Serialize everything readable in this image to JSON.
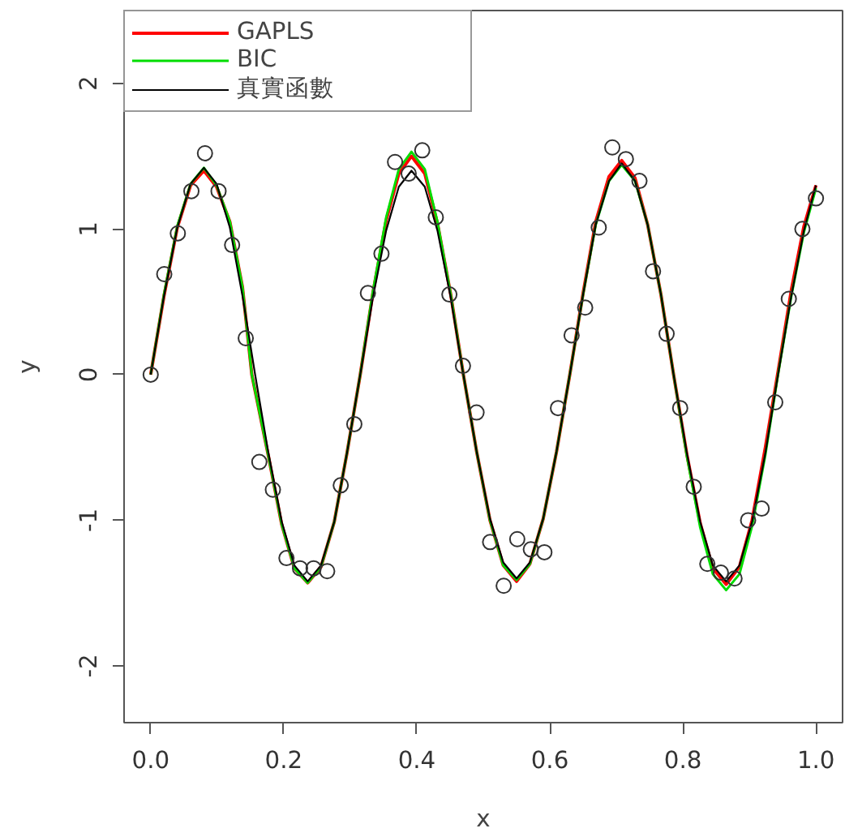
{
  "chart_data": {
    "type": "line",
    "xlabel": "x",
    "ylabel": "y",
    "xlim": [
      -0.04,
      1.04
    ],
    "ylim": [
      -2.39,
      2.5
    ],
    "xticks": [
      {
        "value": 0,
        "label": "0.0"
      },
      {
        "value": 0.2,
        "label": "0.2"
      },
      {
        "value": 0.4,
        "label": "0.4"
      },
      {
        "value": 0.6,
        "label": "0.6"
      },
      {
        "value": 0.8,
        "label": "0.8"
      },
      {
        "value": 1,
        "label": "1.0"
      }
    ],
    "yticks": [
      -2,
      -1,
      0,
      1,
      2
    ],
    "grid": false,
    "legend": "top left",
    "line_style": "solid",
    "series": [
      {
        "name": "GAPLS",
        "color": "#ff0000",
        "x": [
          0,
          0.02,
          0.04,
          0.06,
          0.08,
          0.099,
          0.119,
          0.138,
          0.152,
          0.177,
          0.197,
          0.216,
          0.236,
          0.256,
          0.276,
          0.295,
          0.315,
          0.334,
          0.354,
          0.373,
          0.392,
          0.412,
          0.431,
          0.451,
          0.47,
          0.49,
          0.51,
          0.53,
          0.55,
          0.57,
          0.59,
          0.61,
          0.63,
          0.65,
          0.669,
          0.689,
          0.708,
          0.728,
          0.747,
          0.767,
          0.786,
          0.806,
          0.826,
          0.845,
          0.865,
          0.885,
          0.904,
          0.924,
          0.943,
          0.963,
          0.982,
          1.0
        ],
        "values": [
          0,
          0.54,
          1.01,
          1.3,
          1.4,
          1.29,
          1.05,
          0.6,
          0,
          -0.56,
          -1.03,
          -1.33,
          -1.43,
          -1.32,
          -1.01,
          -0.54,
          0,
          0.56,
          1.06,
          1.38,
          1.5,
          1.38,
          1.04,
          0.55,
          0,
          -0.53,
          -1.0,
          -1.31,
          -1.42,
          -1.3,
          -0.99,
          -0.53,
          0,
          0.56,
          1.05,
          1.36,
          1.47,
          1.35,
          1.03,
          0.55,
          0,
          -0.55,
          -1.02,
          -1.33,
          -1.44,
          -1.32,
          -1.0,
          -0.5,
          0.02,
          0.58,
          1.02,
          1.3
        ]
      },
      {
        "name": "BIC",
        "color": "#00dd00",
        "x": [
          0,
          0.02,
          0.04,
          0.06,
          0.08,
          0.099,
          0.119,
          0.138,
          0.152,
          0.177,
          0.197,
          0.216,
          0.236,
          0.256,
          0.276,
          0.295,
          0.315,
          0.334,
          0.354,
          0.373,
          0.392,
          0.412,
          0.431,
          0.451,
          0.47,
          0.49,
          0.51,
          0.53,
          0.55,
          0.57,
          0.59,
          0.61,
          0.63,
          0.65,
          0.669,
          0.689,
          0.708,
          0.728,
          0.747,
          0.767,
          0.786,
          0.806,
          0.826,
          0.845,
          0.865,
          0.885,
          0.904,
          0.924,
          0.943,
          0.963,
          0.982,
          1.0
        ],
        "values": [
          0,
          0.55,
          1.02,
          1.31,
          1.42,
          1.3,
          1.05,
          0.6,
          0,
          -0.56,
          -1.03,
          -1.33,
          -1.43,
          -1.32,
          -1.01,
          -0.54,
          0,
          0.57,
          1.08,
          1.41,
          1.53,
          1.41,
          1.05,
          0.55,
          0,
          -0.53,
          -1.0,
          -1.31,
          -1.41,
          -1.3,
          -0.99,
          -0.53,
          0,
          0.55,
          1.03,
          1.33,
          1.44,
          1.33,
          1.03,
          0.55,
          0,
          -0.56,
          -1.05,
          -1.37,
          -1.48,
          -1.37,
          -1.04,
          -0.55,
          0,
          0.54,
          0.98,
          1.28
        ]
      },
      {
        "name": "真實函數",
        "color": "#000000",
        "x": [
          0,
          0.02,
          0.04,
          0.06,
          0.08,
          0.099,
          0.119,
          0.138,
          0.157,
          0.177,
          0.197,
          0.216,
          0.236,
          0.256,
          0.276,
          0.295,
          0.315,
          0.334,
          0.354,
          0.373,
          0.392,
          0.412,
          0.431,
          0.451,
          0.47,
          0.49,
          0.51,
          0.53,
          0.55,
          0.57,
          0.59,
          0.61,
          0.63,
          0.65,
          0.669,
          0.689,
          0.708,
          0.728,
          0.747,
          0.767,
          0.786,
          0.806,
          0.826,
          0.845,
          0.865,
          0.885,
          0.904,
          0.924,
          0.943,
          0.963,
          0.982,
          1.0
        ],
        "values": [
          0,
          0.54,
          1.01,
          1.31,
          1.42,
          1.31,
          1.01,
          0.54,
          0,
          -0.54,
          -1.01,
          -1.31,
          -1.42,
          -1.31,
          -1.01,
          -0.54,
          0,
          0.53,
          0.99,
          1.29,
          1.4,
          1.29,
          0.99,
          0.53,
          0,
          -0.53,
          -0.99,
          -1.29,
          -1.4,
          -1.29,
          -0.99,
          -0.53,
          0,
          0.55,
          1.03,
          1.33,
          1.45,
          1.33,
          1.03,
          0.55,
          0,
          -0.54,
          -1.01,
          -1.31,
          -1.42,
          -1.31,
          -1.01,
          -0.54,
          0,
          0.54,
          0.99,
          1.3
        ]
      },
      {
        "type": "scatter",
        "marker": "circle",
        "color": "#333333",
        "x": [
          0,
          0.0204,
          0.0408,
          0.0612,
          0.0816,
          0.102,
          0.1224,
          0.1429,
          0.1633,
          0.1837,
          0.2041,
          0.2245,
          0.2449,
          0.2653,
          0.2857,
          0.3061,
          0.3265,
          0.3469,
          0.3673,
          0.3878,
          0.4082,
          0.4286,
          0.449,
          0.4694,
          0.4898,
          0.5102,
          0.5306,
          0.551,
          0.5714,
          0.5918,
          0.6122,
          0.6327,
          0.6531,
          0.6735,
          0.6939,
          0.7143,
          0.7347,
          0.7551,
          0.7755,
          0.7959,
          0.8163,
          0.8367,
          0.8571,
          0.8776,
          0.898,
          0.9184,
          0.9388,
          0.9592,
          0.9796,
          1
        ],
        "values": [
          0,
          0.69,
          0.97,
          1.26,
          1.52,
          1.26,
          0.89,
          0.25,
          -0.6,
          -0.79,
          -1.26,
          -1.33,
          -1.33,
          -1.35,
          -0.76,
          -0.34,
          0.56,
          0.83,
          1.46,
          1.38,
          1.54,
          1.08,
          0.55,
          0.06,
          -0.26,
          -1.15,
          -1.45,
          -1.13,
          -1.2,
          -1.22,
          -0.23,
          0.27,
          0.46,
          1.01,
          1.56,
          1.48,
          1.33,
          0.71,
          0.28,
          -0.23,
          -0.77,
          -1.3,
          -1.36,
          -1.4,
          -1.0,
          -0.92,
          -0.19,
          0.52,
          1.0,
          1.21
        ]
      }
    ]
  }
}
